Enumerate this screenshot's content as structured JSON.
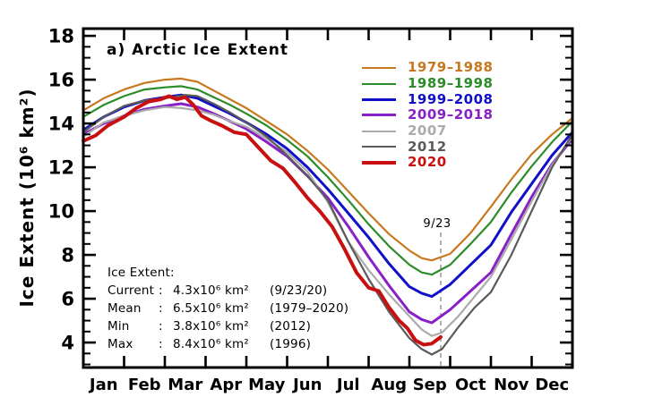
{
  "chart_data": {
    "type": "line",
    "title": "a) Arctic Ice Extent",
    "grid": "off",
    "legend_position": "upper-right-inside",
    "x_axis": {
      "tick_labels": [
        "Jan",
        "Feb",
        "Mar",
        "Apr",
        "May",
        "Jun",
        "Jul",
        "Aug",
        "Sep",
        "Oct",
        "Nov",
        "Dec"
      ],
      "range_months": [
        0,
        12
      ]
    },
    "y_axis": {
      "label": "Ice Extent (10⁶ km²)",
      "ticks": [
        18,
        16,
        14,
        12,
        10,
        8,
        6,
        4
      ],
      "minor_step": 0.5,
      "range": [
        2.86,
        18.33
      ]
    },
    "annotation": {
      "label": "9/23",
      "x_month": 8.77,
      "style": "dashed-vertical",
      "color": "#909090",
      "label_color": "#444444"
    },
    "series": [
      {
        "name": "1979-1988",
        "color": "#C8781E",
        "line_width": 2.2,
        "x": [
          0,
          0.5,
          1,
          1.5,
          2,
          2.4,
          2.8,
          3.2,
          3.6,
          4,
          4.5,
          5,
          5.5,
          6,
          6.5,
          7,
          7.5,
          8,
          8.3,
          8.55,
          9,
          9.5,
          10,
          10.5,
          11,
          11.5,
          12
        ],
        "y": [
          14.6,
          15.15,
          15.55,
          15.85,
          16.0,
          16.05,
          15.9,
          15.5,
          15.1,
          14.7,
          14.1,
          13.5,
          12.75,
          11.9,
          10.9,
          9.9,
          8.95,
          8.2,
          7.85,
          7.75,
          8.05,
          9.0,
          10.2,
          11.45,
          12.6,
          13.5,
          14.25
        ]
      },
      {
        "name": "1989-1998",
        "color": "#2C8C28",
        "line_width": 2.2,
        "x": [
          0,
          0.5,
          1,
          1.5,
          2,
          2.4,
          2.8,
          3.2,
          3.6,
          4,
          4.5,
          5,
          5.5,
          6,
          6.5,
          7,
          7.5,
          8,
          8.3,
          8.55,
          9,
          9.5,
          10,
          10.5,
          11,
          11.5,
          12
        ],
        "y": [
          14.3,
          14.85,
          15.25,
          15.55,
          15.65,
          15.7,
          15.55,
          15.2,
          14.85,
          14.45,
          13.9,
          13.25,
          12.5,
          11.55,
          10.5,
          9.4,
          8.4,
          7.55,
          7.2,
          7.1,
          7.55,
          8.5,
          9.5,
          10.85,
          12.05,
          13.15,
          14.1
        ]
      },
      {
        "name": "1999-2008",
        "color": "#1010C8",
        "line_width": 3,
        "x": [
          0,
          0.5,
          1,
          1.5,
          2,
          2.4,
          2.8,
          3.2,
          3.6,
          4,
          4.5,
          5,
          5.5,
          6,
          6.5,
          7,
          7.5,
          8,
          8.3,
          8.55,
          9,
          9.5,
          10,
          10.5,
          11,
          11.5,
          12
        ],
        "y": [
          13.7,
          14.3,
          14.75,
          15.05,
          15.2,
          15.3,
          15.15,
          14.8,
          14.45,
          14.05,
          13.5,
          12.85,
          12.0,
          11.0,
          9.9,
          8.8,
          7.6,
          6.55,
          6.25,
          6.1,
          6.65,
          7.55,
          8.45,
          9.95,
          11.25,
          12.55,
          13.6
        ]
      },
      {
        "name": "2009-2018",
        "color": "#8820C8",
        "line_width": 3,
        "x": [
          0,
          0.5,
          1,
          1.5,
          2,
          2.4,
          2.8,
          3.2,
          3.6,
          4,
          4.5,
          5,
          5.5,
          6,
          6.5,
          7,
          7.5,
          8,
          8.3,
          8.55,
          9,
          9.5,
          10,
          10.5,
          11,
          11.5,
          12
        ],
        "y": [
          13.5,
          14.0,
          14.35,
          14.65,
          14.8,
          14.9,
          14.75,
          14.45,
          14.1,
          13.75,
          13.15,
          12.5,
          11.6,
          10.6,
          9.3,
          7.9,
          6.6,
          5.4,
          5.05,
          4.9,
          5.5,
          6.35,
          7.2,
          8.95,
          10.65,
          12.15,
          13.3
        ]
      },
      {
        "name": "2007",
        "color": "#ABABAB",
        "line_width": 2.2,
        "x": [
          0,
          0.5,
          1,
          1.5,
          2,
          2.4,
          2.8,
          3.2,
          3.6,
          4,
          4.5,
          5,
          5.5,
          6,
          6.5,
          7,
          7.5,
          8,
          8.3,
          8.55,
          8.8,
          9.2,
          9.6,
          10,
          10.5,
          11,
          11.5,
          12
        ],
        "y": [
          13.4,
          14.05,
          14.35,
          14.6,
          14.75,
          14.7,
          14.6,
          14.4,
          14.1,
          13.85,
          13.3,
          12.7,
          11.8,
          10.4,
          8.6,
          7.3,
          6.2,
          5.2,
          4.6,
          4.3,
          4.45,
          5.2,
          6.1,
          7.0,
          8.7,
          10.45,
          12.1,
          13.4
        ]
      },
      {
        "name": "2012",
        "color": "#5A5A5A",
        "line_width": 2.2,
        "x": [
          0,
          0.5,
          1,
          1.5,
          2,
          2.5,
          2.8,
          3.2,
          3.6,
          4,
          4.5,
          5,
          5.5,
          6,
          6.5,
          7,
          7.5,
          8,
          8.3,
          8.55,
          8.8,
          9.2,
          9.6,
          10,
          10.5,
          11,
          11.5,
          12
        ],
        "y": [
          13.6,
          14.3,
          14.8,
          15.05,
          15.15,
          15.3,
          15.25,
          14.9,
          14.5,
          14.05,
          13.4,
          12.55,
          11.6,
          10.5,
          8.6,
          6.9,
          5.4,
          4.2,
          3.7,
          3.45,
          3.7,
          4.7,
          5.6,
          6.3,
          8.0,
          10.0,
          12.0,
          13.5
        ]
      },
      {
        "name": "2020",
        "color": "#C81010",
        "line_width": 4,
        "x": [
          0,
          0.3,
          0.6,
          1,
          1.3,
          1.6,
          1.9,
          2.1,
          2.3,
          2.5,
          2.7,
          2.9,
          3.1,
          3.4,
          3.7,
          4,
          4.3,
          4.6,
          4.9,
          5.2,
          5.5,
          5.8,
          6.1,
          6.4,
          6.7,
          7,
          7.25,
          7.5,
          7.75,
          7.95,
          8.15,
          8.35,
          8.55,
          8.77
        ],
        "y": [
          13.2,
          13.45,
          13.9,
          14.3,
          14.7,
          15.0,
          15.1,
          15.25,
          15.1,
          15.2,
          14.85,
          14.35,
          14.15,
          13.9,
          13.6,
          13.5,
          12.9,
          12.3,
          11.95,
          11.3,
          10.6,
          10.0,
          9.3,
          8.3,
          7.2,
          6.5,
          6.35,
          5.6,
          5.0,
          4.65,
          4.1,
          3.9,
          3.95,
          4.25
        ]
      }
    ]
  },
  "legend": {
    "items": [
      {
        "label": "1979–1988",
        "color": "#C8781E",
        "line_weight": 2
      },
      {
        "label": "1989–1998",
        "color": "#2C8C28",
        "line_weight": 2
      },
      {
        "label": "1999–2008",
        "color": "#1010C8",
        "line_weight": 3
      },
      {
        "label": "2009–2018",
        "color": "#8820C8",
        "line_weight": 3
      },
      {
        "label": "2007",
        "color": "#ABABAB",
        "line_weight": 2
      },
      {
        "label": "2012",
        "color": "#5A5A5A",
        "line_weight": 2
      },
      {
        "label": "2020",
        "color": "#C81010",
        "line_weight": 4
      }
    ]
  },
  "stats": {
    "heading": "Ice Extent:",
    "colon": ":",
    "rows": [
      {
        "name": "Current",
        "value": "4.3x10⁶ km²",
        "note": "(9/23/20)"
      },
      {
        "name": "Mean",
        "value": "6.5x10⁶ km²",
        "note": "(1979–2020)"
      },
      {
        "name": "Min",
        "value": "3.8x10⁶ km²",
        "note": "(2012)"
      },
      {
        "name": "Max",
        "value": "8.4x10⁶ km²",
        "note": "(1996)"
      }
    ]
  },
  "frame_color": "#000000"
}
